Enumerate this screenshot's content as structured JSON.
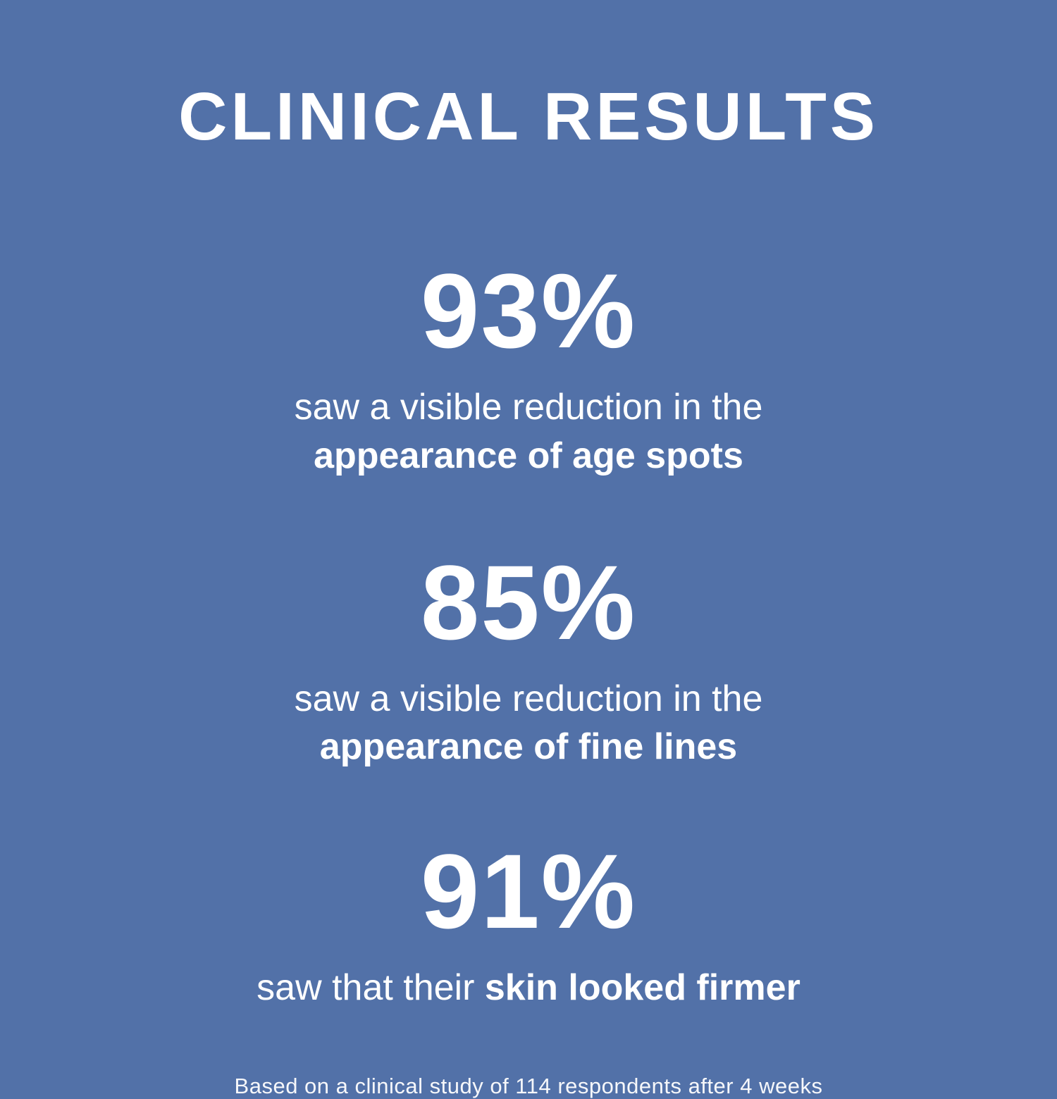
{
  "colors": {
    "background": "#5271a8",
    "text": "#ffffff"
  },
  "title": "CLINICAL RESULTS",
  "stats": [
    {
      "value": "93%",
      "desc_regular": "saw a visible reduction in the",
      "desc_bold": "appearance of age spots"
    },
    {
      "value": "85%",
      "desc_regular": "saw a visible reduction in the",
      "desc_bold": "appearance of fine lines"
    },
    {
      "value": "91%",
      "desc_regular": "saw that their",
      "desc_bold": "skin looked firmer"
    }
  ],
  "footnote": "Based on a clinical study of 114 respondents after 4 weeks"
}
